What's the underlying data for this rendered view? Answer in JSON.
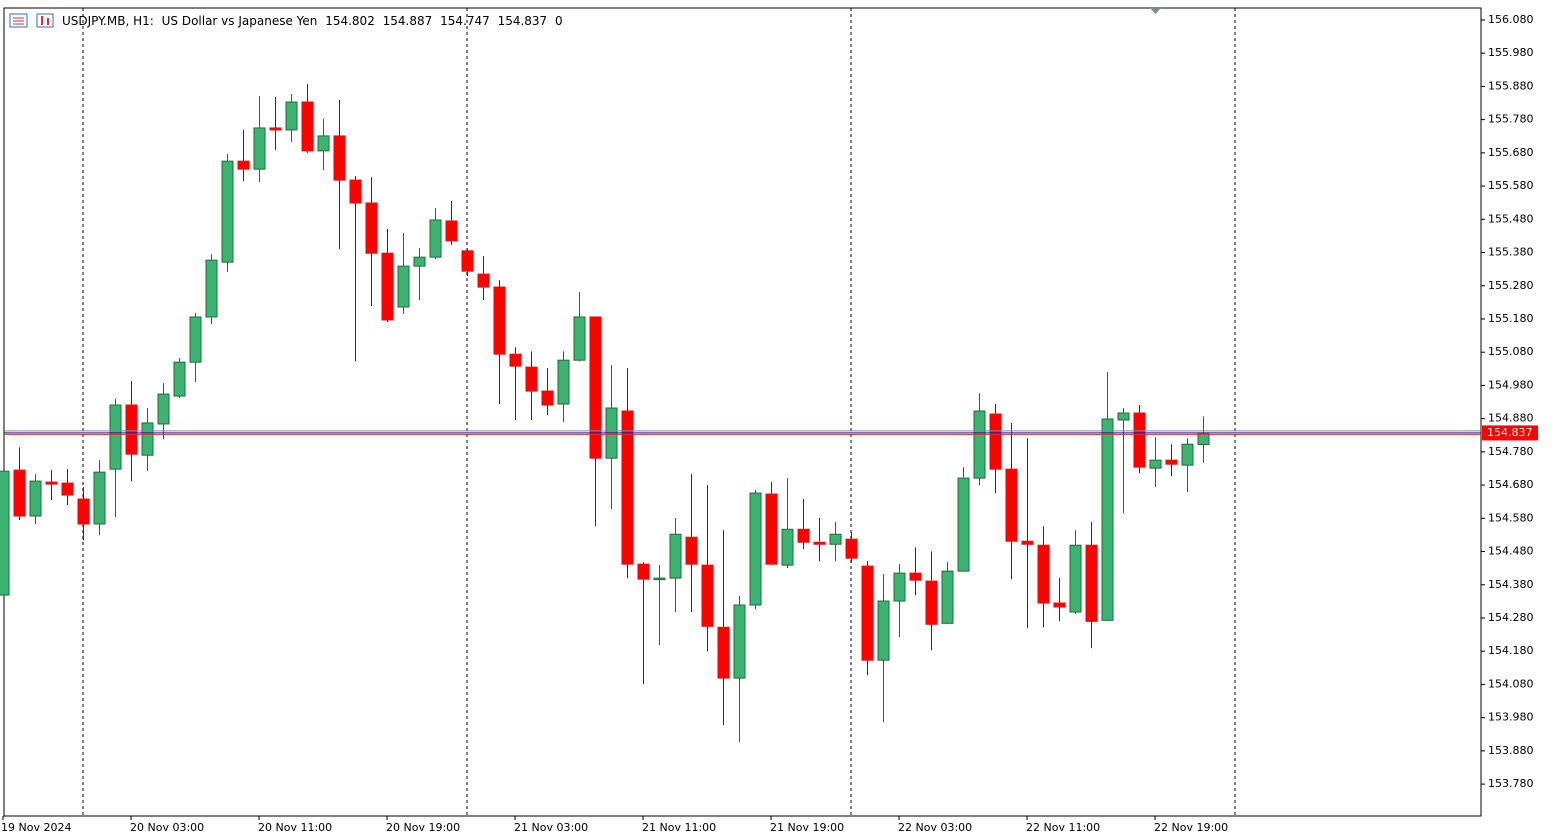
{
  "chart_data": {
    "type": "candlestick",
    "symbol": "USDJPY.MB, H1:",
    "description": "US Dollar vs Japanese Yen",
    "header_suffix": 0,
    "up_color": "#3cb371",
    "down_color": "#ff0000",
    "categories": [
      "19 Nov 2024",
      null,
      null,
      null,
      null,
      null,
      null,
      null,
      "20 Nov 03:00",
      null,
      null,
      null,
      null,
      null,
      null,
      null,
      "20 Nov 11:00",
      null,
      null,
      null,
      null,
      null,
      null,
      null,
      "20 Nov 19:00",
      null,
      null,
      null,
      null,
      null,
      null,
      null,
      "21 Nov 03:00",
      null,
      null,
      null,
      null,
      null,
      null,
      null,
      "21 Nov 11:00",
      null,
      null,
      null,
      null,
      null,
      null,
      null,
      "21 Nov 19:00",
      null,
      null,
      null,
      null,
      null,
      null,
      null,
      "22 Nov 03:00",
      null,
      null,
      null,
      null,
      null,
      null,
      null,
      "22 Nov 11:00",
      null,
      null,
      null,
      null,
      null,
      null,
      null,
      "22 Nov 19:00",
      null,
      null,
      null
    ],
    "open": [
      154.349,
      154.725,
      154.587,
      154.689,
      154.686,
      154.638,
      154.563,
      154.728,
      154.921,
      154.77,
      154.864,
      154.948,
      155.05,
      155.186,
      155.351,
      155.655,
      155.631,
      155.755,
      155.749,
      155.833,
      155.686,
      155.731,
      155.598,
      155.529,
      155.378,
      155.216,
      155.339,
      155.366,
      155.475,
      155.385,
      155.315,
      155.276,
      155.074,
      155.035,
      154.963,
      154.924,
      155.056,
      155.186,
      154.761,
      154.903,
      154.442,
      154.397,
      154.4,
      154.523,
      154.439,
      154.252,
      154.099,
      154.319,
      154.653,
      154.439,
      154.547,
      154.508,
      154.502,
      154.517,
      154.436,
      154.153,
      154.331,
      154.415,
      154.391,
      154.264,
      154.421,
      154.701,
      154.894,
      154.728,
      154.511,
      154.499,
      154.325,
      154.298,
      154.499,
      154.273,
      154.876,
      154.897,
      154.731,
      154.755,
      154.74,
      154.802
    ],
    "high": [
      154.722,
      154.794,
      154.713,
      154.725,
      154.728,
      154.674,
      154.755,
      154.939,
      154.993,
      154.912,
      154.987,
      155.062,
      155.198,
      155.375,
      155.677,
      155.749,
      155.851,
      155.848,
      155.857,
      155.887,
      155.782,
      155.839,
      155.61,
      155.607,
      155.451,
      155.439,
      155.393,
      155.514,
      155.535,
      155.391,
      155.369,
      155.297,
      155.095,
      155.083,
      155.032,
      155.083,
      155.261,
      155.186,
      155.041,
      155.032,
      154.448,
      154.439,
      154.581,
      154.713,
      154.68,
      154.544,
      154.346,
      154.665,
      154.689,
      154.701,
      154.638,
      154.581,
      154.569,
      154.538,
      154.451,
      154.412,
      154.442,
      154.493,
      154.481,
      154.448,
      154.734,
      154.957,
      154.924,
      154.867,
      154.821,
      154.556,
      154.4,
      154.544,
      154.569,
      155.02,
      154.912,
      154.921,
      154.824,
      154.803,
      154.821,
      154.887
    ],
    "low": [
      154.349,
      154.575,
      154.563,
      154.635,
      154.62,
      154.514,
      154.529,
      154.584,
      154.692,
      154.722,
      154.818,
      154.942,
      154.99,
      155.165,
      155.321,
      155.595,
      155.592,
      155.689,
      155.713,
      155.68,
      155.628,
      155.391,
      155.053,
      155.219,
      155.171,
      155.195,
      155.237,
      155.36,
      155.403,
      155.309,
      155.237,
      154.924,
      154.876,
      154.876,
      154.891,
      154.87,
      155.053,
      154.556,
      154.608,
      154.4,
      154.081,
      154.198,
      154.298,
      154.298,
      154.18,
      153.957,
      153.906,
      154.307,
      154.439,
      154.43,
      154.487,
      154.451,
      154.451,
      154.448,
      154.108,
      153.966,
      154.222,
      154.349,
      154.183,
      154.261,
      154.421,
      154.68,
      154.656,
      154.397,
      154.249,
      154.252,
      154.27,
      154.292,
      154.189,
      154.27,
      154.596,
      154.716,
      154.674,
      154.707,
      154.659,
      154.747
    ],
    "close": [
      154.722,
      154.587,
      154.692,
      154.683,
      154.65,
      154.563,
      154.719,
      154.921,
      154.773,
      154.867,
      154.954,
      155.05,
      155.186,
      155.357,
      155.655,
      155.631,
      155.755,
      155.749,
      155.833,
      155.686,
      155.731,
      155.598,
      155.529,
      155.378,
      155.177,
      155.339,
      155.366,
      155.478,
      155.415,
      155.324,
      155.276,
      155.074,
      155.038,
      154.963,
      154.921,
      155.056,
      155.186,
      154.761,
      154.912,
      154.442,
      154.397,
      154.4,
      154.532,
      154.442,
      154.255,
      154.099,
      154.319,
      154.656,
      154.442,
      154.547,
      154.508,
      154.502,
      154.532,
      154.46,
      154.153,
      154.331,
      154.415,
      154.394,
      154.261,
      154.421,
      154.701,
      154.903,
      154.728,
      154.511,
      154.502,
      154.325,
      154.313,
      154.499,
      154.27,
      154.879,
      154.897,
      154.734,
      154.755,
      154.743,
      154.803,
      154.837
    ],
    "ylim": [
      153.684,
      156.116
    ],
    "yticks": [
      {
        "value": 153.78,
        "label": "153.780"
      },
      {
        "value": 153.88,
        "label": "153.880"
      },
      {
        "value": 153.98,
        "label": "153.980"
      },
      {
        "value": 154.08,
        "label": "154.080"
      },
      {
        "value": 154.18,
        "label": "154.180"
      },
      {
        "value": 154.28,
        "label": "154.280"
      },
      {
        "value": 154.38,
        "label": "154.380"
      },
      {
        "value": 154.48,
        "label": "154.480"
      },
      {
        "value": 154.58,
        "label": "154.580"
      },
      {
        "value": 154.68,
        "label": "154.680"
      },
      {
        "value": 154.78,
        "label": "154.780"
      },
      {
        "value": 154.88,
        "label": "154.880"
      },
      {
        "value": 154.98,
        "label": "154.980"
      },
      {
        "value": 155.08,
        "label": "155.080"
      },
      {
        "value": 155.18,
        "label": "155.180"
      },
      {
        "value": 155.28,
        "label": "155.280"
      },
      {
        "value": 155.38,
        "label": "155.380"
      },
      {
        "value": 155.48,
        "label": "155.480"
      },
      {
        "value": 155.58,
        "label": "155.580"
      },
      {
        "value": 155.68,
        "label": "155.680"
      },
      {
        "value": 155.78,
        "label": "155.780"
      },
      {
        "value": 155.88,
        "label": "155.880"
      },
      {
        "value": 155.98,
        "label": "155.980"
      },
      {
        "value": 156.08,
        "label": "156.080"
      }
    ]
  }
}
